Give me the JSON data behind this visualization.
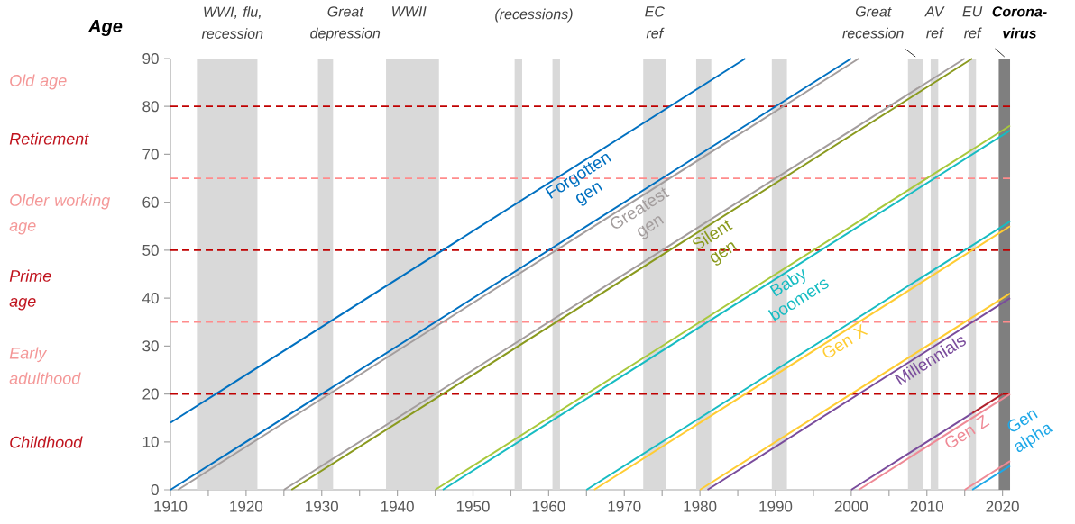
{
  "chart_data": {
    "type": "line",
    "ylabel": "Age",
    "xlim": [
      1910,
      2021
    ],
    "xticks": [
      1910,
      1920,
      1930,
      1940,
      1950,
      1960,
      1970,
      1980,
      1990,
      2000,
      2010,
      2020
    ],
    "ylim": [
      0,
      90
    ],
    "yticks": [
      0,
      10,
      20,
      30,
      40,
      50,
      60,
      70,
      80,
      90
    ],
    "grid": false,
    "legend": false,
    "line_style": "solid",
    "series": [
      {
        "name": "Forgotten gen",
        "color": "#0070c0",
        "x": [
          1910,
          1986
        ],
        "values": [
          14,
          90
        ]
      },
      {
        "color": "#0070c0",
        "x": [
          1910,
          2000
        ],
        "values": [
          0,
          90
        ]
      },
      {
        "name": "Greatest gen",
        "color": "#a39d9d",
        "x": [
          1911,
          2001
        ],
        "values": [
          0,
          90
        ]
      },
      {
        "color": "#a39d9d",
        "x": [
          1925,
          2015
        ],
        "values": [
          0,
          90
        ]
      },
      {
        "name": "Silent gen",
        "color": "#8a9a1e",
        "x": [
          1926,
          2016
        ],
        "values": [
          0,
          90
        ]
      },
      {
        "color": "#a8c83c",
        "x": [
          1945,
          2021
        ],
        "values": [
          0,
          76
        ]
      },
      {
        "name": "Baby boomers",
        "color": "#17bcc2",
        "x": [
          1946,
          2021
        ],
        "values": [
          0,
          75
        ]
      },
      {
        "color": "#17bcc2",
        "x": [
          1965,
          2021
        ],
        "values": [
          0,
          56
        ]
      },
      {
        "name": "Gen X",
        "color": "#ffcc33",
        "x": [
          1966,
          2021
        ],
        "values": [
          0,
          55
        ]
      },
      {
        "color": "#ffcc33",
        "x": [
          1980,
          2021
        ],
        "values": [
          0,
          41
        ]
      },
      {
        "name": "Millennials",
        "color": "#7a4c9c",
        "x": [
          1981,
          2021
        ],
        "values": [
          0,
          40
        ]
      },
      {
        "color": "#7a4c9c",
        "x": [
          2000,
          2016
        ],
        "values": [
          0,
          16
        ]
      },
      {
        "color": "#b0202c",
        "x": [
          2016,
          2020
        ],
        "values": [
          16,
          20
        ]
      },
      {
        "name": "Gen Z",
        "color": "#ef8a96",
        "x": [
          2001,
          2021
        ],
        "values": [
          0,
          20
        ]
      },
      {
        "color": "#ef8a96",
        "x": [
          2015,
          2021
        ],
        "values": [
          0,
          6
        ]
      },
      {
        "name": "Gen alpha",
        "color": "#1ea8e8",
        "x": [
          2016,
          2021
        ],
        "values": [
          0,
          5
        ]
      }
    ],
    "ref_lines": [
      {
        "axis": "y",
        "value": 20,
        "color": "#c00000",
        "line_style": "dashed"
      },
      {
        "axis": "y",
        "value": 35,
        "color": "#ff8c8c",
        "line_style": "dashed"
      },
      {
        "axis": "y",
        "value": 50,
        "color": "#c00000",
        "line_style": "dashed"
      },
      {
        "axis": "y",
        "value": 65,
        "color": "#ff8c8c",
        "line_style": "dashed"
      },
      {
        "axis": "y",
        "value": 80,
        "color": "#c00000",
        "line_style": "dashed"
      }
    ],
    "bands": [
      {
        "axis": "x",
        "from": 1913.5,
        "to": 1921.5,
        "label": "WWI, flu, recession",
        "color": "#d9d9d9"
      },
      {
        "axis": "x",
        "from": 1929.5,
        "to": 1931.5,
        "label": "Great depression",
        "color": "#d9d9d9"
      },
      {
        "axis": "x",
        "from": 1938.5,
        "to": 1945.5,
        "label": "WWII",
        "color": "#d9d9d9"
      },
      {
        "axis": "x",
        "from": 1955.5,
        "to": 1956.5,
        "color": "#d9d9d9"
      },
      {
        "axis": "x",
        "from": 1960.5,
        "to": 1961.5,
        "color": "#d9d9d9"
      },
      {
        "axis": "x",
        "from": 1972.5,
        "to": 1975.5,
        "label": "EC ref",
        "color": "#d9d9d9"
      },
      {
        "axis": "x",
        "from": 1979.5,
        "to": 1981.5,
        "color": "#d9d9d9"
      },
      {
        "axis": "x",
        "from": 1989.5,
        "to": 1991.5,
        "color": "#d9d9d9"
      },
      {
        "axis": "x",
        "from": 2007.5,
        "to": 2009.5,
        "label": "Great recession",
        "color": "#d9d9d9"
      },
      {
        "axis": "x",
        "from": 2010.5,
        "to": 2011.5,
        "label": "AV ref",
        "color": "#d9d9d9"
      },
      {
        "axis": "x",
        "from": 2015.5,
        "to": 2016.5,
        "label": "EU ref",
        "color": "#d9d9d9"
      },
      {
        "axis": "x",
        "from": 2019.5,
        "to": 2021,
        "label": "Corona-virus",
        "color": "#7f7f7f"
      }
    ],
    "annotations": [
      "Old age",
      "Retirement",
      "Older working age",
      "Prime age",
      "Early adulthood",
      "Childhood",
      "(recessions)"
    ]
  }
}
